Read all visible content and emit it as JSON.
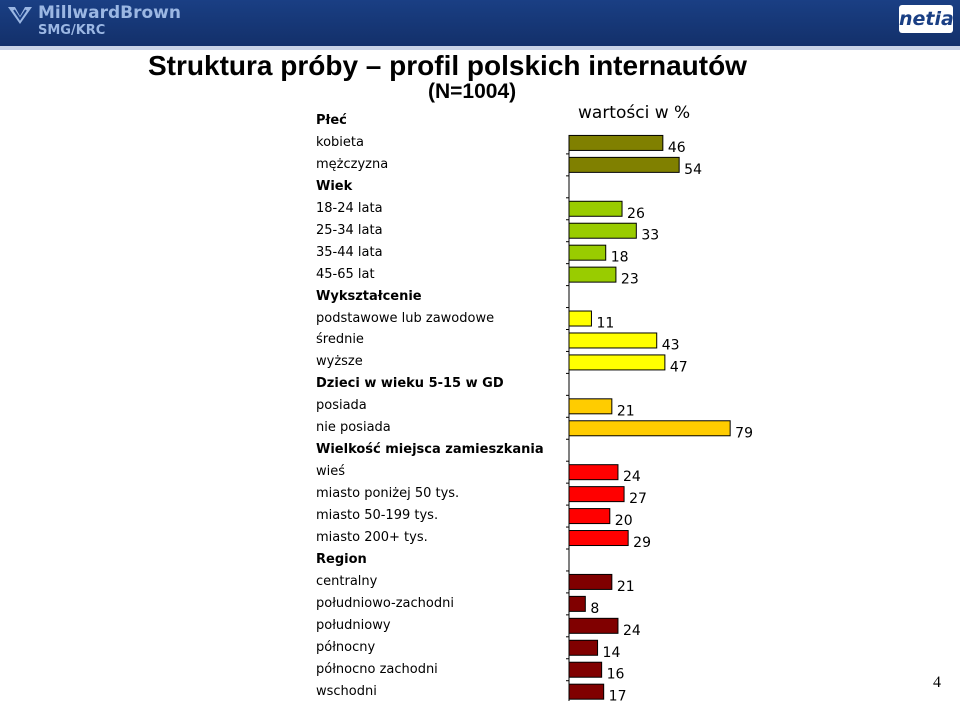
{
  "header": {
    "left_logo_text": "MillwardBrown",
    "left_logo_sub": "SMG/KRC",
    "right_logo_text": "netia"
  },
  "title": "Struktura próby – profil polskich internautów",
  "subtitle": "(N=1004)",
  "unit_label": "wartości w %",
  "page_number": "4",
  "colors": {
    "Płeć": "#808000",
    "Wiek": "#99cc00",
    "Wykształcenie": "#ffff00",
    "Dzieci w wieku 5-15 w GD": "#ffcc00",
    "Wielkość miejsca zamieszkania": "#ff0000",
    "Region": "#800000"
  },
  "chart_data": {
    "type": "bar",
    "orientation": "horizontal",
    "xlim": [
      0,
      100
    ],
    "groups": [
      {
        "name": "Płeć",
        "categories": [
          "kobieta",
          "mężczyzna"
        ],
        "values": [
          46,
          54
        ]
      },
      {
        "name": "Wiek",
        "categories": [
          "18-24 lata",
          "25-34 lata",
          "35-44 lata",
          "45-65 lat"
        ],
        "values": [
          26,
          33,
          18,
          23
        ]
      },
      {
        "name": "Wykształcenie",
        "categories": [
          "podstawowe lub zawodowe",
          "średnie",
          "wyższe"
        ],
        "values": [
          11,
          43,
          47
        ]
      },
      {
        "name": "Dzieci w wieku 5-15 w GD",
        "categories": [
          "posiada",
          "nie posiada"
        ],
        "values": [
          21,
          79
        ]
      },
      {
        "name": "Wielkość miejsca zamieszkania",
        "categories": [
          "wieś",
          "miasto poniżej 50 tys.",
          "miasto 50-199 tys.",
          "miasto 200+ tys."
        ],
        "values": [
          24,
          27,
          20,
          29
        ]
      },
      {
        "name": "Region",
        "categories": [
          "centralny",
          "południowo-zachodni",
          "południowy",
          "północny",
          "północno zachodni",
          "wschodni"
        ],
        "values": [
          21,
          8,
          24,
          14,
          16,
          17
        ]
      }
    ]
  }
}
